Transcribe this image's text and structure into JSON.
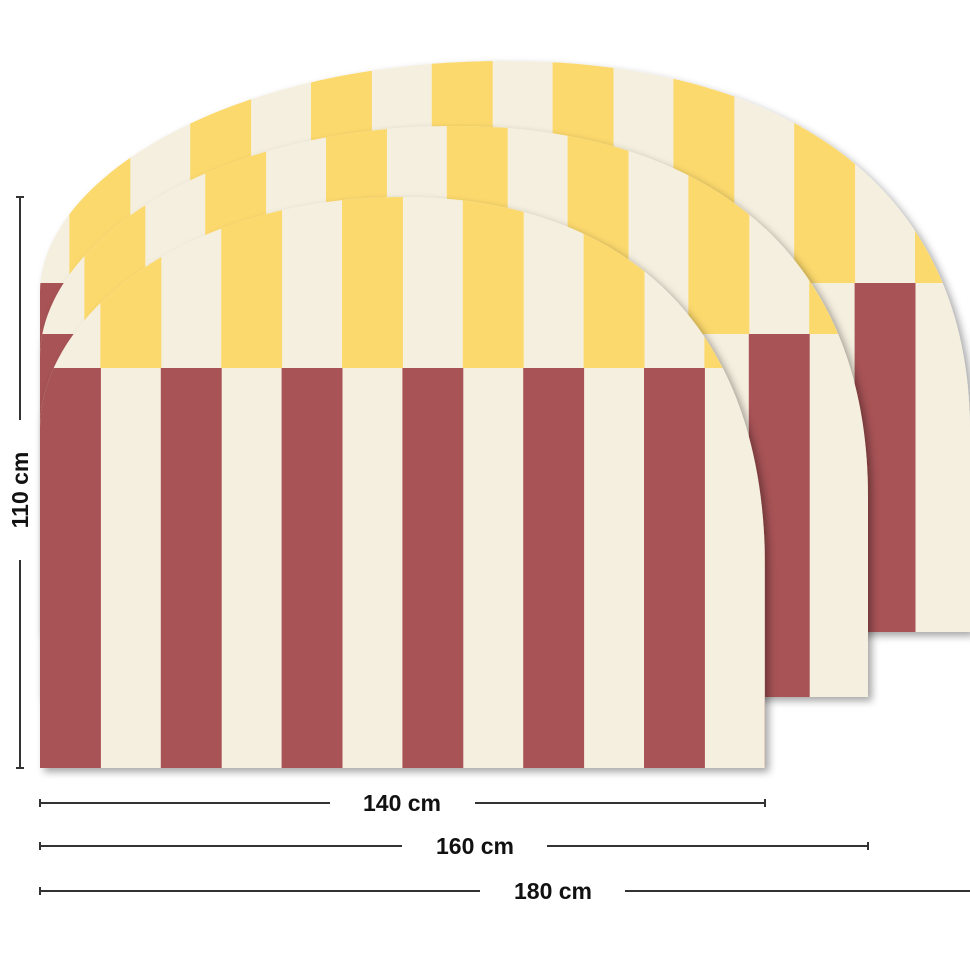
{
  "dimensions": {
    "height_label": "110 cm",
    "width_labels": [
      "140 cm",
      "160 cm",
      "180 cm"
    ]
  },
  "colors": {
    "red": "#a85356",
    "cream": "#f5efdf",
    "yellow": "#fcd96d",
    "line": "#222222"
  }
}
